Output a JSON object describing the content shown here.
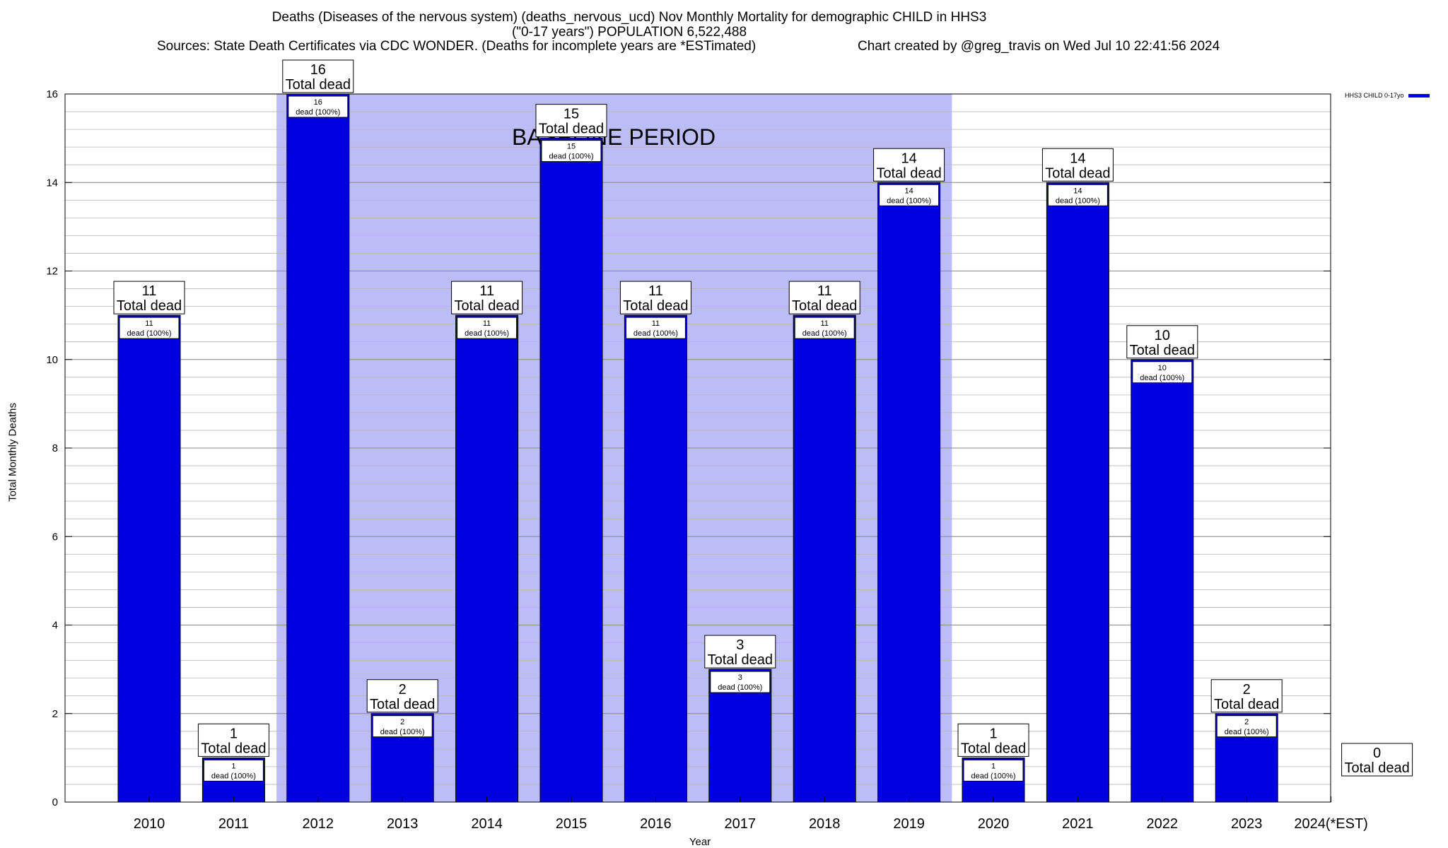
{
  "header": {
    "line1": "Deaths (Diseases of the nervous system) (deaths_nervous_ucd) Nov Monthly Mortality for demographic CHILD in HHS3",
    "line2": "(\"0-17 years\") POPULATION 6,522,488",
    "sources": "Sources: State Death Certificates via CDC WONDER. (Deaths for incomplete years are *ESTimated)",
    "credit": "Chart created by @greg_travis on Wed Jul 10 22:41:56 2024"
  },
  "legend": {
    "label": "HHS3 CHILD 0-17yo"
  },
  "chart_data": {
    "type": "bar",
    "title": "Deaths (Diseases of the nervous system) (deaths_nervous_ucd) Nov Monthly Mortality for demographic CHILD in HHS3",
    "xlabel": "Year",
    "ylabel": "Total Monthly Deaths",
    "ylim": [
      0,
      16
    ],
    "yticks": [
      0,
      2,
      4,
      6,
      8,
      10,
      12,
      14,
      16
    ],
    "grid": true,
    "legend_position": "top-right",
    "categories": [
      "2010",
      "2011",
      "2012",
      "2013",
      "2014",
      "2015",
      "2016",
      "2017",
      "2018",
      "2019",
      "2020",
      "2021",
      "2022",
      "2023",
      "2024(*EST)"
    ],
    "series": [
      {
        "name": "HHS3 CHILD 0-17yo",
        "color": "#0000e0",
        "values": [
          11,
          1,
          16,
          2,
          11,
          15,
          11,
          3,
          11,
          14,
          1,
          14,
          10,
          2,
          0
        ]
      }
    ],
    "total_label": "Total dead",
    "inner_label": "dead (100%)",
    "baseline": {
      "label": "BASELINE PERIOD",
      "from": "2012",
      "to": "2019",
      "color": "#bcbcf6"
    }
  }
}
